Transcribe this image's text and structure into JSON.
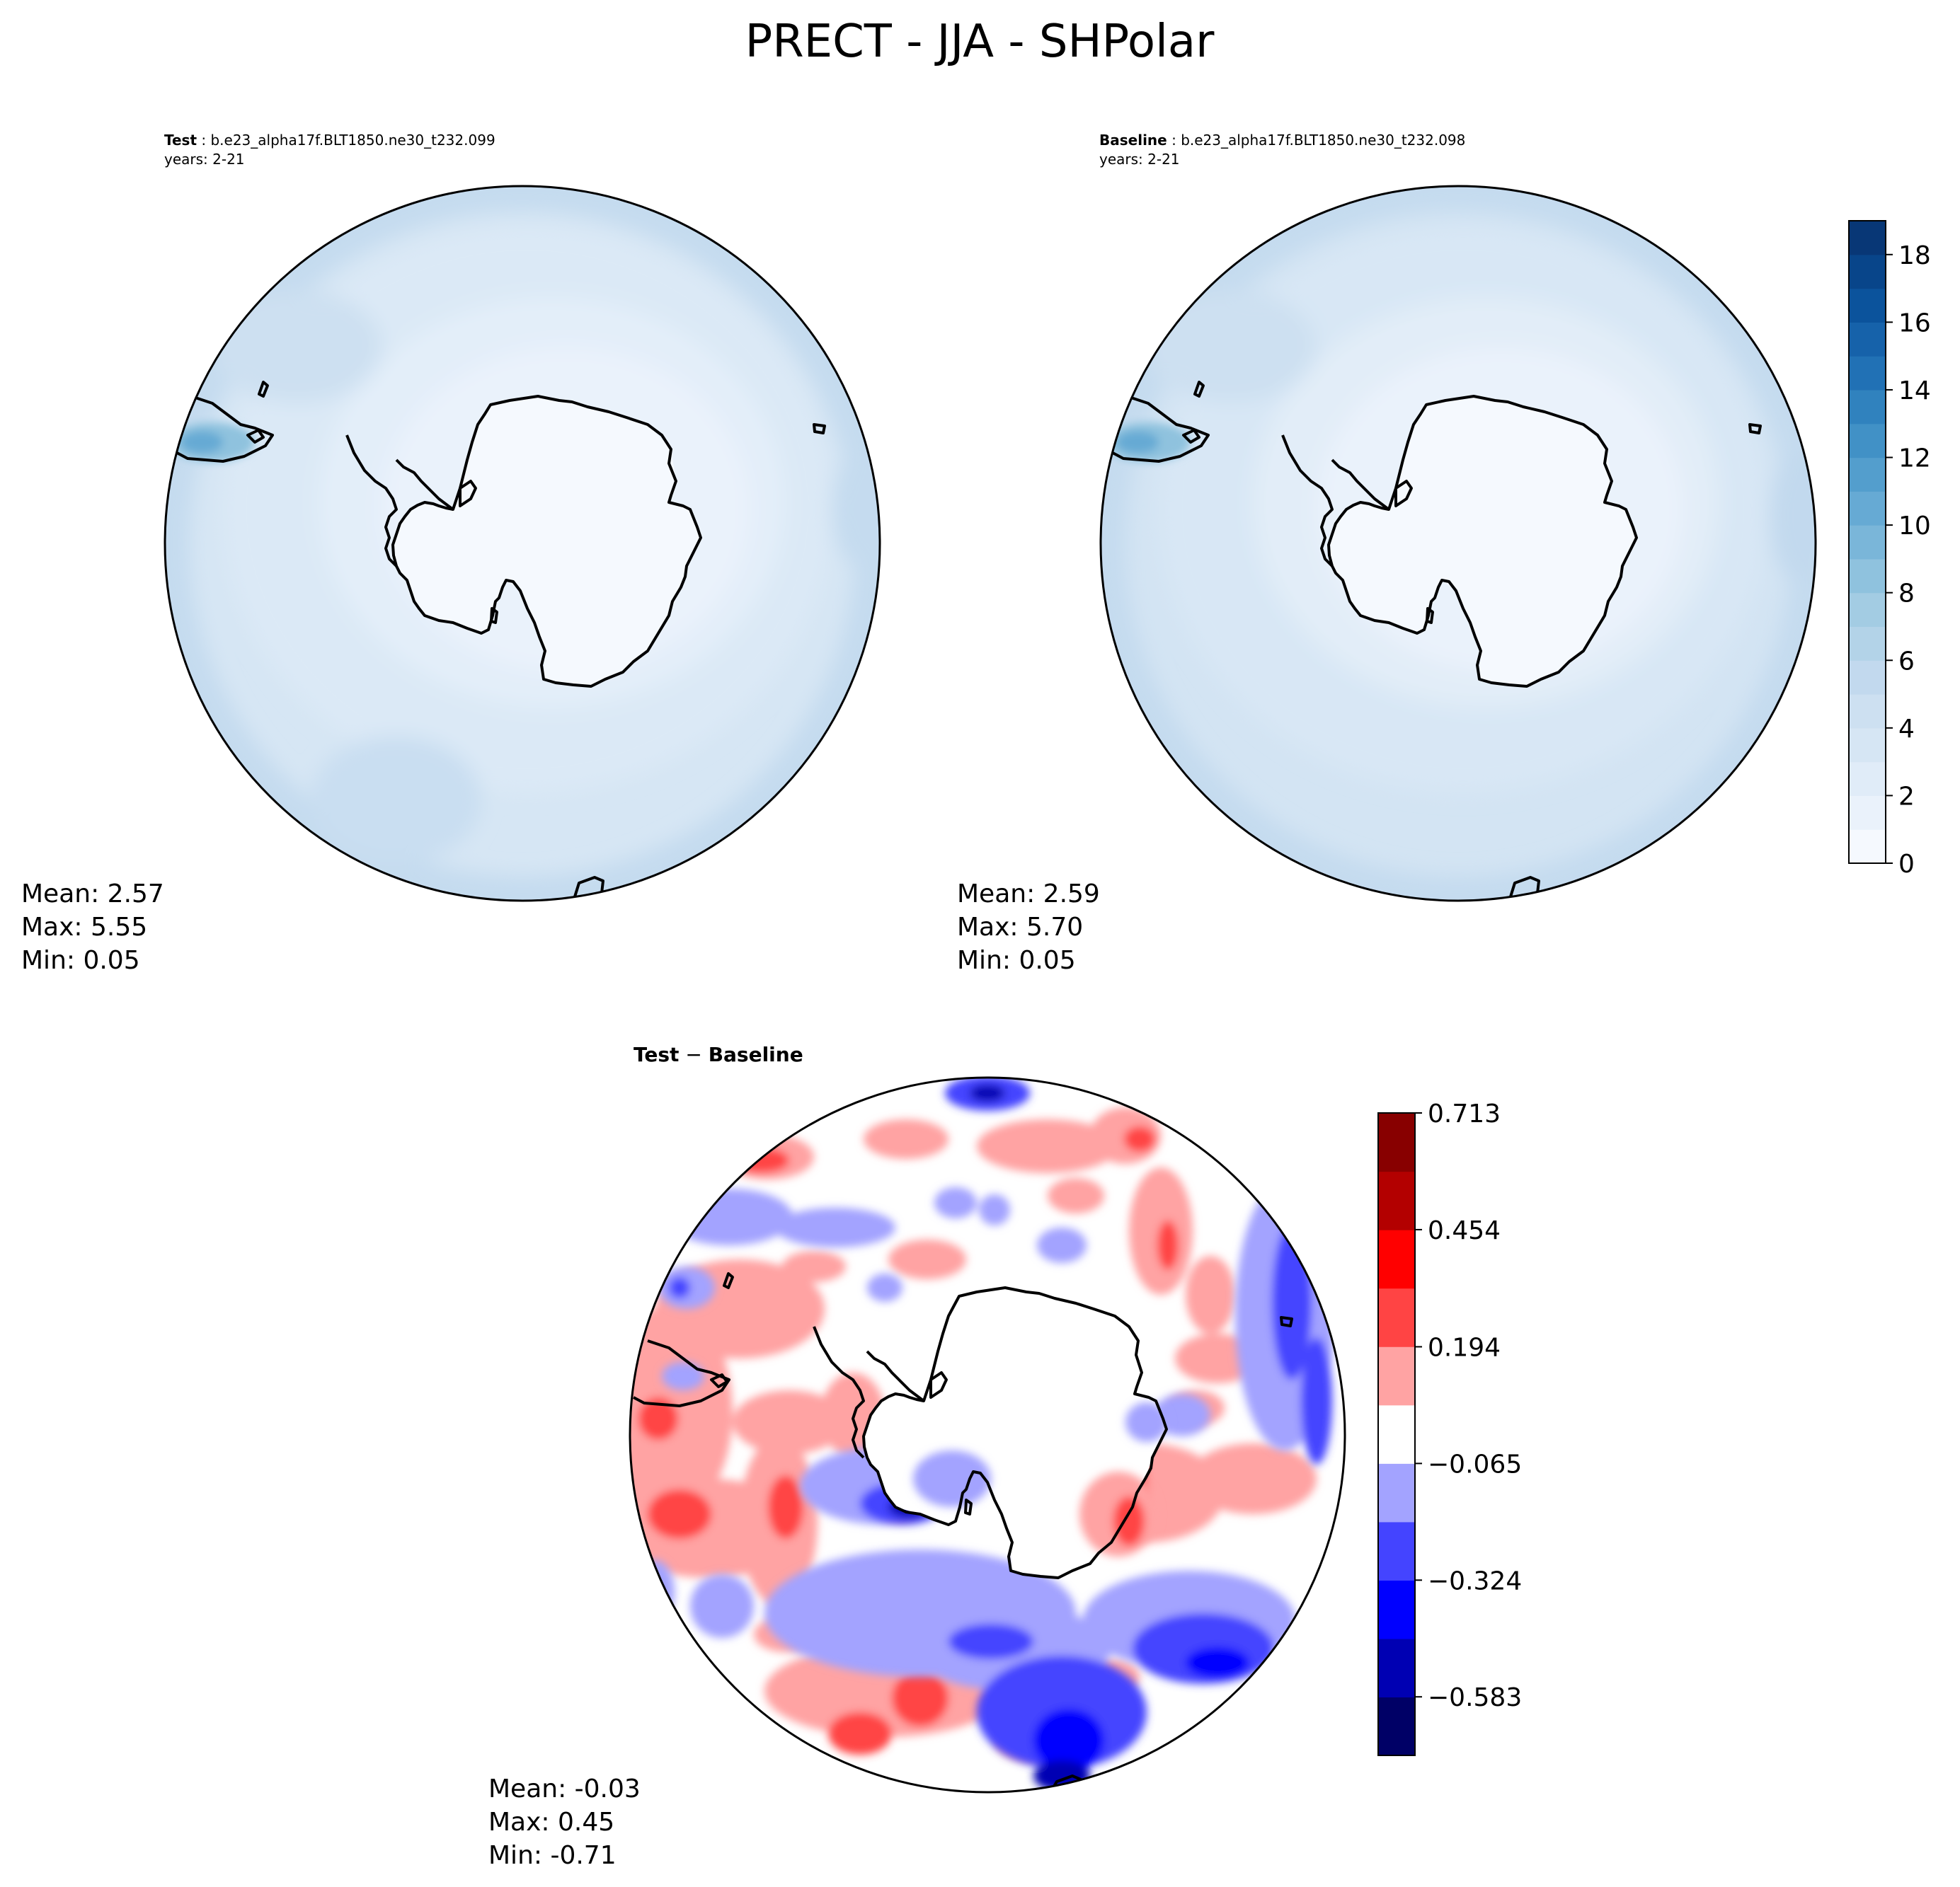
{
  "figure": {
    "title": "PRECT - JJA - SHPolar"
  },
  "panels": {
    "test": {
      "label_bold": "Test",
      "case": " : b.e23_alpha17f.BLT1850.ne30_t232.099",
      "years": "years: 2-21",
      "stats": {
        "mean": "Mean:  2.57",
        "max": "Max:  5.55",
        "min": "Min:  0.05"
      }
    },
    "baseline": {
      "label_bold": "Baseline",
      "case": " : b.e23_alpha17f.BLT1850.ne30_t232.098",
      "years": "years: 2-21",
      "stats": {
        "mean": "Mean:  2.59",
        "max": "Max:  5.70",
        "min": "Min:  0.05"
      }
    },
    "diff": {
      "title_a": "Test",
      "title_op": " − ",
      "title_b": "Baseline",
      "stats": {
        "mean": "Mean: -0.03",
        "max": "Max:  0.45",
        "min": "Min: -0.71"
      }
    }
  },
  "colorbars": {
    "precip": {
      "range": [
        0,
        19
      ],
      "tick_labels": [
        "0",
        "2",
        "4",
        "6",
        "8",
        "10",
        "12",
        "14",
        "16",
        "18"
      ],
      "colors": [
        "#f5f9fe",
        "#eaf2fb",
        "#e0ecf8",
        "#d6e6f4",
        "#cde0f1",
        "#c2d9ee",
        "#b3d3e8",
        "#a3cce3",
        "#8fc2de",
        "#7ab6d9",
        "#66aad4",
        "#539ecd",
        "#4191c6",
        "#3082be",
        "#2171b5",
        "#1662aa",
        "#0b539c",
        "#08458a",
        "#083776"
      ]
    },
    "diff": {
      "range": [
        -0.713,
        0.713
      ],
      "tick_labels": [
        "−0.583",
        "−0.324",
        "−0.065",
        "0.194",
        "0.454",
        "0.713"
      ],
      "colors": [
        "#000066",
        "#0000b3",
        "#0000ff",
        "#4444ff",
        "#a3a3ff",
        "#ffffff",
        "#ffa3a3",
        "#ff4444",
        "#ff0000",
        "#b30000",
        "#880000"
      ]
    }
  }
}
